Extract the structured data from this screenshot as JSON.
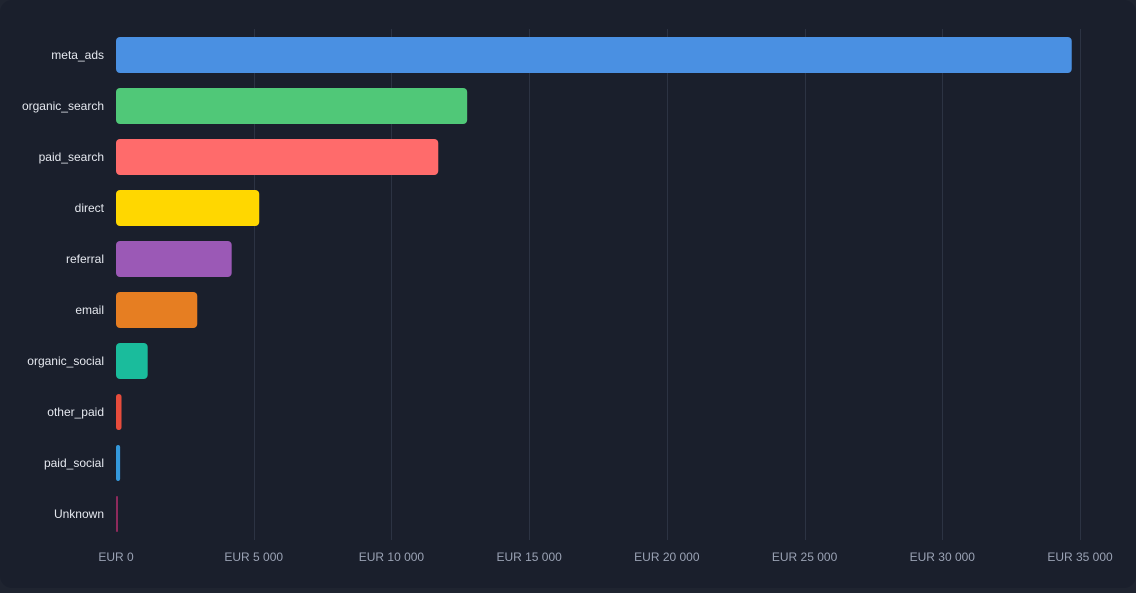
{
  "chart_data": {
    "type": "bar",
    "orientation": "horizontal",
    "categories": [
      "meta_ads",
      "organic_search",
      "paid_search",
      "direct",
      "referral",
      "email",
      "organic_social",
      "other_paid",
      "paid_social",
      "Unknown"
    ],
    "values": [
      34700,
      12750,
      11700,
      5200,
      4200,
      2950,
      1150,
      200,
      150,
      60
    ],
    "colors": [
      "#4a90e2",
      "#50c878",
      "#ff6b6b",
      "#ffd700",
      "#9b59b6",
      "#e67e22",
      "#1abc9c",
      "#e74c3c",
      "#3498db",
      "#8e2a5c"
    ],
    "x_ticks": [
      0,
      5000,
      10000,
      15000,
      20000,
      25000,
      30000,
      35000
    ],
    "x_tick_labels": [
      "EUR 0",
      "EUR 5 000",
      "EUR 10 000",
      "EUR 15 000",
      "EUR 20 000",
      "EUR 25 000",
      "EUR 30 000",
      "EUR 35 000"
    ],
    "xlim": [
      0,
      35000
    ],
    "grid": true,
    "legend": "none",
    "background": "#1a1f2c"
  }
}
